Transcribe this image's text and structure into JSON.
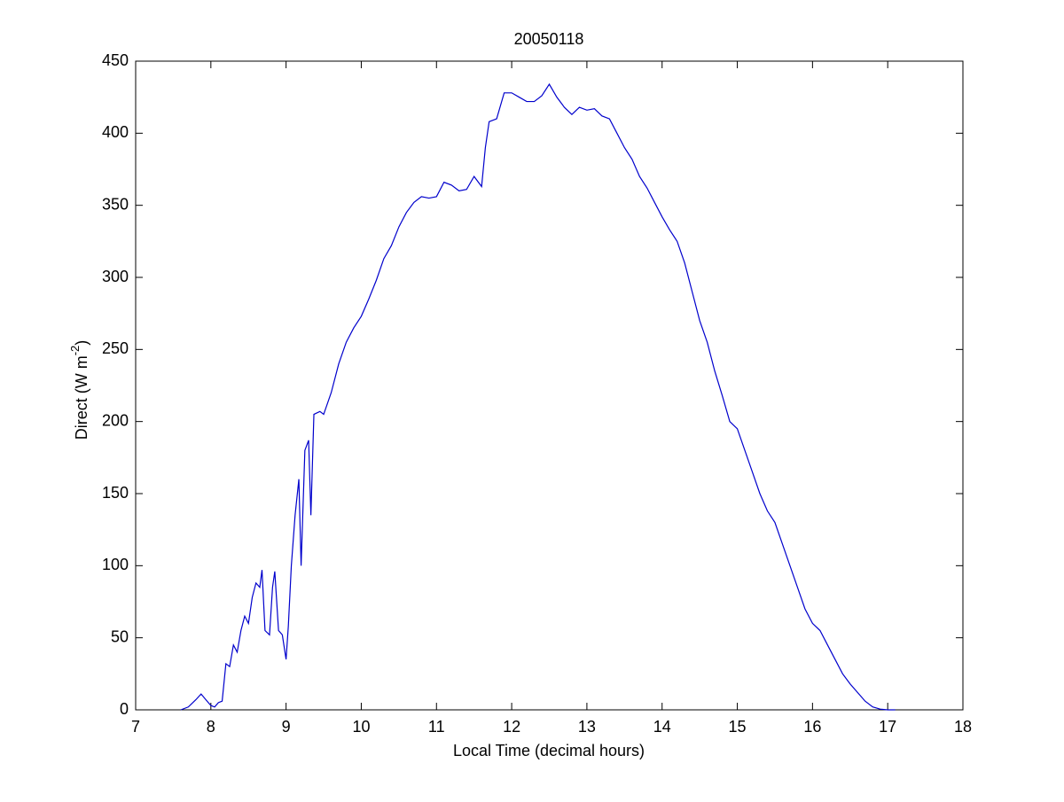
{
  "chart_data": {
    "type": "line",
    "title": "20050118",
    "xlabel": "Local Time (decimal hours)",
    "ylabel": {
      "text": "Direct (W m",
      "superscript": "-2",
      "suffix": ")"
    },
    "xlim": [
      7,
      18
    ],
    "xticks": [
      7,
      8,
      9,
      10,
      11,
      12,
      13,
      14,
      15,
      16,
      17,
      18
    ],
    "ylim": [
      0,
      450
    ],
    "yticks": [
      0,
      50,
      100,
      150,
      200,
      250,
      300,
      350,
      400,
      450
    ],
    "grid": false,
    "series": [
      {
        "color": "#0000cc",
        "x": [
          7.6,
          7.7,
          7.8,
          7.87,
          7.95,
          8.0,
          8.05,
          8.1,
          8.15,
          8.2,
          8.25,
          8.3,
          8.35,
          8.4,
          8.45,
          8.5,
          8.55,
          8.6,
          8.65,
          8.68,
          8.72,
          8.78,
          8.82,
          8.85,
          8.9,
          8.95,
          9.0,
          9.03,
          9.07,
          9.12,
          9.17,
          9.2,
          9.25,
          9.3,
          9.33,
          9.37,
          9.45,
          9.5,
          9.6,
          9.7,
          9.8,
          9.9,
          10.0,
          10.1,
          10.2,
          10.3,
          10.4,
          10.5,
          10.6,
          10.7,
          10.8,
          10.9,
          11.0,
          11.1,
          11.2,
          11.3,
          11.4,
          11.5,
          11.6,
          11.65,
          11.7,
          11.8,
          11.9,
          12.0,
          12.1,
          12.2,
          12.3,
          12.4,
          12.5,
          12.6,
          12.7,
          12.8,
          12.9,
          13.0,
          13.1,
          13.2,
          13.3,
          13.4,
          13.5,
          13.6,
          13.7,
          13.8,
          13.9,
          14.0,
          14.1,
          14.2,
          14.3,
          14.4,
          14.5,
          14.6,
          14.7,
          14.8,
          14.9,
          15.0,
          15.1,
          15.2,
          15.3,
          15.4,
          15.5,
          15.6,
          15.7,
          15.8,
          15.9,
          16.0,
          16.1,
          16.2,
          16.3,
          16.4,
          16.5,
          16.6,
          16.7,
          16.8,
          16.9,
          17.0,
          17.1
        ],
        "values": [
          0,
          2,
          7,
          11,
          6,
          3,
          2,
          5,
          6,
          32,
          30,
          45,
          40,
          55,
          65,
          60,
          78,
          88,
          85,
          97,
          55,
          52,
          85,
          96,
          55,
          52,
          35,
          58,
          100,
          135,
          160,
          100,
          180,
          187,
          135,
          205,
          207,
          205,
          220,
          240,
          255,
          265,
          273,
          285,
          298,
          313,
          322,
          335,
          345,
          352,
          356,
          355,
          356,
          366,
          364,
          360,
          361,
          370,
          363,
          390,
          408,
          410,
          428,
          428,
          425,
          422,
          422,
          426,
          434,
          425,
          418,
          413,
          418,
          416,
          417,
          412,
          410,
          400,
          390,
          382,
          370,
          362,
          352,
          342,
          333,
          325,
          310,
          290,
          270,
          255,
          235,
          218,
          200,
          195,
          180,
          165,
          150,
          138,
          130,
          115,
          100,
          85,
          70,
          60,
          55,
          45,
          35,
          25,
          18,
          12,
          6,
          2,
          0.5,
          0,
          0
        ]
      }
    ]
  }
}
